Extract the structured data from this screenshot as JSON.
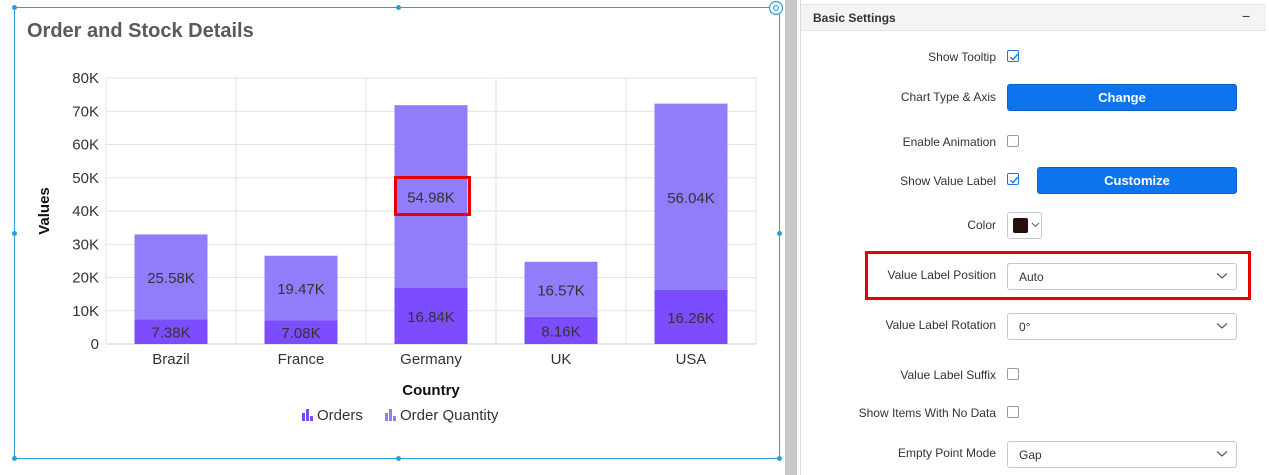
{
  "chart_panel": {
    "title": "Order and Stock Details",
    "accent_color": "#2d9cdb"
  },
  "chart_data": {
    "type": "bar",
    "stacked": true,
    "categories": [
      "Brazil",
      "France",
      "Germany",
      "UK",
      "USA"
    ],
    "series": [
      {
        "name": "Orders",
        "color": "#7c4dff",
        "values": [
          7380,
          7080,
          16840,
          8160,
          16260
        ],
        "labels": [
          "7.38K",
          "7.08K",
          "16.84K",
          "8.16K",
          "16.26K"
        ]
      },
      {
        "name": "Order Quantity",
        "color": "#917dfb",
        "values": [
          25580,
          19470,
          54980,
          16570,
          56040
        ],
        "labels": [
          "25.58K",
          "19.47K",
          "54.98K",
          "16.57K",
          "56.04K"
        ]
      }
    ],
    "xlabel": "Country",
    "ylabel": "Values",
    "ylim": [
      0,
      80000
    ],
    "yticks": [
      {
        "value": 0,
        "label": "0"
      },
      {
        "value": 10000,
        "label": "10K"
      },
      {
        "value": 20000,
        "label": "20K"
      },
      {
        "value": 30000,
        "label": "30K"
      },
      {
        "value": 40000,
        "label": "40K"
      },
      {
        "value": 50000,
        "label": "50K"
      },
      {
        "value": 60000,
        "label": "60K"
      },
      {
        "value": 70000,
        "label": "70K"
      },
      {
        "value": 80000,
        "label": "80K"
      }
    ],
    "grid": true,
    "legend_position": "bottom",
    "highlighted_label": "54.98K"
  },
  "settings": {
    "section_title": "Basic Settings",
    "collapse_icon": "−",
    "rows": {
      "show_tooltip": {
        "label": "Show Tooltip",
        "checked": true
      },
      "chart_type_axis": {
        "label": "Chart Type & Axis",
        "button": "Change"
      },
      "enable_animation": {
        "label": "Enable Animation",
        "checked": false
      },
      "show_value_label": {
        "label": "Show Value Label",
        "checked": true,
        "button": "Customize"
      },
      "color": {
        "label": "Color",
        "value": "#2a0d0d"
      },
      "value_label_position": {
        "label": "Value Label Position",
        "value": "Auto"
      },
      "value_label_rotation": {
        "label": "Value Label Rotation",
        "value": "0°"
      },
      "value_label_suffix": {
        "label": "Value Label Suffix",
        "checked": false
      },
      "show_items_no_data": {
        "label": "Show Items With No Data",
        "checked": false
      },
      "empty_point_mode": {
        "label": "Empty Point Mode",
        "value": "Gap"
      }
    }
  },
  "colors": {
    "button": "#0d74f0",
    "highlight": "#e60000",
    "checkbox_check": "#1a73e8"
  }
}
